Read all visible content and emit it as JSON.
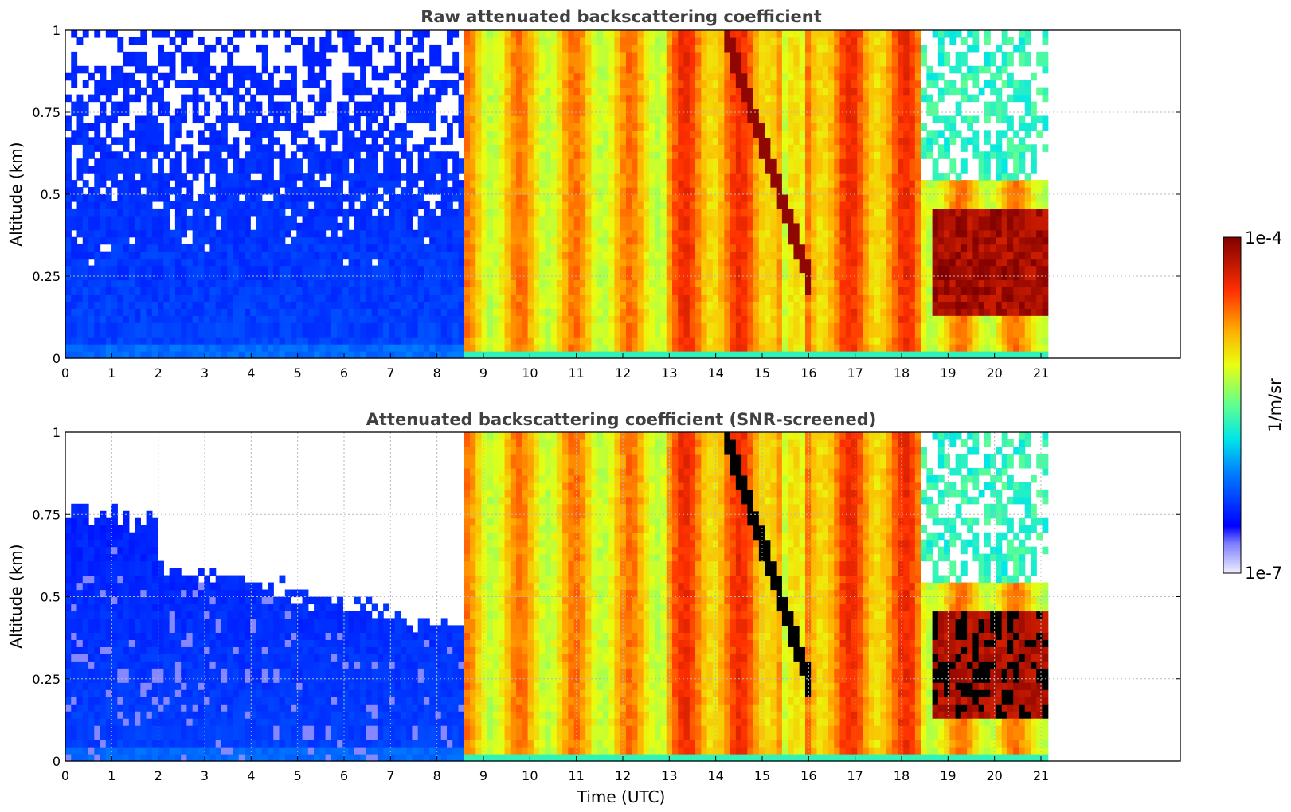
{
  "chart_data": [
    {
      "type": "heatmap",
      "title": "Raw attenuated backscattering coefficient",
      "xlabel": "",
      "ylabel": "Altitude (km)",
      "xlim": [
        0,
        24
      ],
      "ylim": [
        0,
        1
      ],
      "x_ticks": [
        "0",
        "1",
        "2",
        "3",
        "4",
        "5",
        "6",
        "7",
        "8",
        "9",
        "10",
        "11",
        "12",
        "13",
        "14",
        "15",
        "16",
        "17",
        "18",
        "19",
        "20",
        "21"
      ],
      "y_ticks": [
        "0",
        "0.25",
        "0.5",
        "0.75",
        "1"
      ],
      "grid": true,
      "data_end_time": 21.15,
      "screened": false
    },
    {
      "type": "heatmap",
      "title": "Attenuated backscattering coefficient (SNR-screened)",
      "xlabel": "Time (UTC)",
      "ylabel": "Altitude (km)",
      "xlim": [
        0,
        24
      ],
      "ylim": [
        0,
        1
      ],
      "x_ticks": [
        "0",
        "1",
        "2",
        "3",
        "4",
        "5",
        "6",
        "7",
        "8",
        "9",
        "10",
        "11",
        "12",
        "13",
        "14",
        "15",
        "16",
        "17",
        "18",
        "19",
        "20",
        "21"
      ],
      "y_ticks": [
        "0",
        "0.25",
        "0.5",
        "0.75",
        "1"
      ],
      "grid": true,
      "data_end_time": 21.15,
      "screened": true
    }
  ],
  "colorbar": {
    "label": "1/m/sr",
    "min_label": "1e-7",
    "max_label": "1e-4",
    "scale": "log",
    "colormap": "jet"
  }
}
